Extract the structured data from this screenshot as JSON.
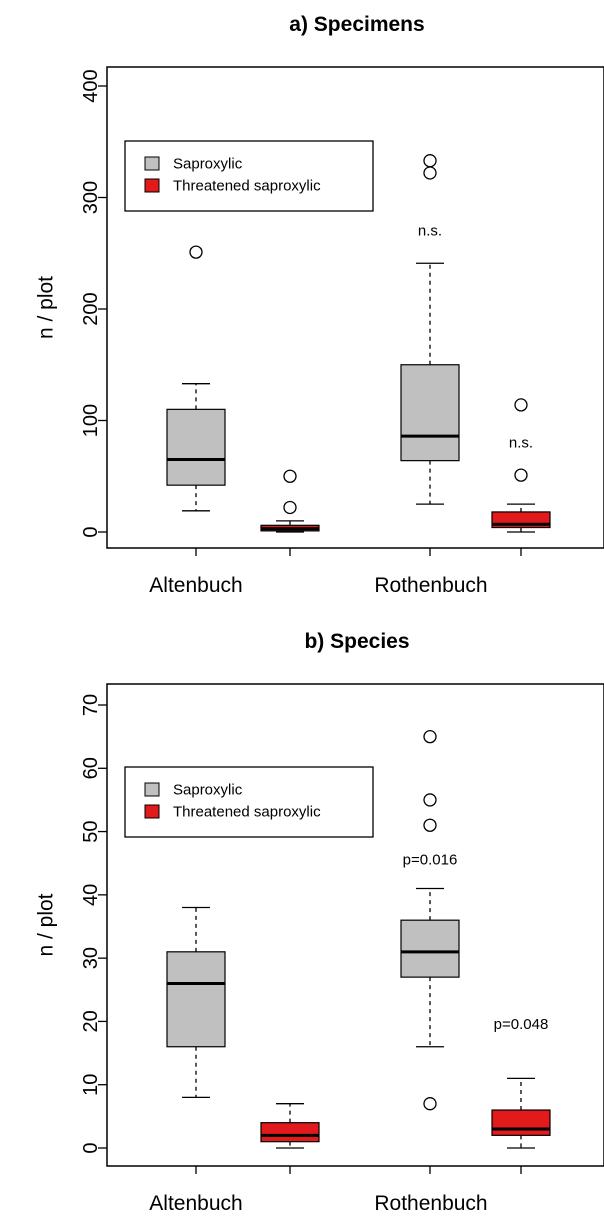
{
  "colors": {
    "saproxylic": "#c0c0c0",
    "threatened": "#e31a1c",
    "axis": "#000000"
  },
  "chart_data": [
    {
      "type": "boxplot",
      "title": "a) Specimens",
      "ylabel": "n / plot",
      "ylim": [
        0,
        400
      ],
      "yticks": [
        0,
        100,
        200,
        300,
        400
      ],
      "categories": [
        "Altenbuch",
        "Rothenbuch"
      ],
      "legend": {
        "placement": "top-left",
        "entries": [
          "Saproxylic",
          "Threatened saproxylic"
        ]
      },
      "series": [
        {
          "name": "Saproxylic",
          "boxes": [
            {
              "category": "Altenbuch",
              "whisker_low": 19,
              "q1": 42,
              "median": 65,
              "q3": 110,
              "whisker_high": 133,
              "outliers": [
                251
              ]
            },
            {
              "category": "Rothenbuch",
              "whisker_low": 25,
              "q1": 64,
              "median": 86,
              "q3": 150,
              "whisker_high": 241,
              "outliers": [
                322,
                333
              ]
            }
          ]
        },
        {
          "name": "Threatened saproxylic",
          "boxes": [
            {
              "category": "Altenbuch",
              "whisker_low": 0,
              "q1": 1,
              "median": 3,
              "q3": 6,
              "whisker_high": 10,
              "outliers": [
                22,
                50
              ]
            },
            {
              "category": "Rothenbuch",
              "whisker_low": 0,
              "q1": 4,
              "median": 7,
              "q3": 18,
              "whisker_high": 25,
              "outliers": [
                51,
                114
              ]
            }
          ]
        }
      ],
      "annotations": [
        {
          "text": "n.s.",
          "category": "Rothenbuch",
          "series": "Saproxylic",
          "y": 270
        },
        {
          "text": "n.s.",
          "category": "Rothenbuch",
          "series": "Threatened saproxylic",
          "y": 80
        }
      ]
    },
    {
      "type": "boxplot",
      "title": "b) Species",
      "ylabel": "n / plot",
      "ylim": [
        0,
        70
      ],
      "yticks": [
        0,
        10,
        20,
        30,
        40,
        50,
        60,
        70
      ],
      "categories": [
        "Altenbuch",
        "Rothenbuch"
      ],
      "legend": {
        "placement": "top-left",
        "entries": [
          "Saproxylic",
          "Threatened saproxylic"
        ]
      },
      "series": [
        {
          "name": "Saproxylic",
          "boxes": [
            {
              "category": "Altenbuch",
              "whisker_low": 8,
              "q1": 16,
              "median": 26,
              "q3": 31,
              "whisker_high": 38,
              "outliers": []
            },
            {
              "category": "Rothenbuch",
              "whisker_low": 16,
              "q1": 27,
              "median": 31,
              "q3": 36,
              "whisker_high": 41,
              "outliers": [
                7,
                51,
                55,
                65
              ]
            }
          ]
        },
        {
          "name": "Threatened saproxylic",
          "boxes": [
            {
              "category": "Altenbuch",
              "whisker_low": 0,
              "q1": 1,
              "median": 2,
              "q3": 4,
              "whisker_high": 7,
              "outliers": []
            },
            {
              "category": "Rothenbuch",
              "whisker_low": 0,
              "q1": 2,
              "median": 3,
              "q3": 6,
              "whisker_high": 11,
              "outliers": []
            }
          ]
        }
      ],
      "annotations": [
        {
          "text": "p=0.016",
          "category": "Rothenbuch",
          "series": "Saproxylic",
          "y": 45.5
        },
        {
          "text": "p=0.048",
          "category": "Rothenbuch",
          "series": "Threatened saproxylic",
          "y": 19.5
        }
      ]
    }
  ]
}
